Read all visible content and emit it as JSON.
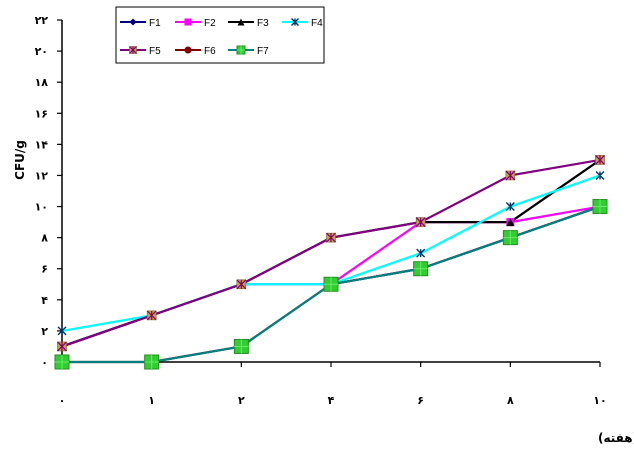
{
  "chart_data": {
    "type": "line",
    "xlabel": "زمان (هفته)",
    "ylabel": "CFU/g",
    "x_ticks": [
      "۰",
      "۱",
      "۲",
      "۴",
      "۶",
      "۸",
      "۱۰"
    ],
    "y_ticks": [
      "۰",
      "۲",
      "۴",
      "۶",
      "۸",
      "۱۰",
      "۱۲",
      "۱۴",
      "۱۶",
      "۱۸",
      "۲۰",
      "۲۲"
    ],
    "ylim": [
      0,
      22
    ],
    "grid": false,
    "legend_position": "top",
    "series": [
      {
        "name": "F1",
        "color": "#000080",
        "marker": "diamond",
        "values": [
          1,
          3,
          5,
          5,
          6,
          8,
          10
        ]
      },
      {
        "name": "F2",
        "color": "#ff00ff",
        "marker": "square",
        "values": [
          1,
          3,
          5,
          5,
          9,
          9,
          10
        ]
      },
      {
        "name": "F3",
        "color": "#000000",
        "marker": "triangle",
        "values": [
          1,
          3,
          5,
          8,
          9,
          9,
          13
        ]
      },
      {
        "name": "F4",
        "color": "#00ffff",
        "marker": "x",
        "values": [
          2,
          3,
          5,
          5,
          7,
          10,
          12
        ]
      },
      {
        "name": "F5",
        "color": "#800080",
        "marker": "star",
        "values": [
          1,
          3,
          5,
          8,
          9,
          12,
          13
        ]
      },
      {
        "name": "F6",
        "color": "#800000",
        "marker": "circle",
        "values": [
          0,
          0,
          1,
          5,
          6,
          8,
          10
        ]
      },
      {
        "name": "F7",
        "color": "#008080",
        "marker": "square-green",
        "values": [
          0,
          0,
          1,
          5,
          6,
          8,
          10
        ]
      }
    ]
  }
}
